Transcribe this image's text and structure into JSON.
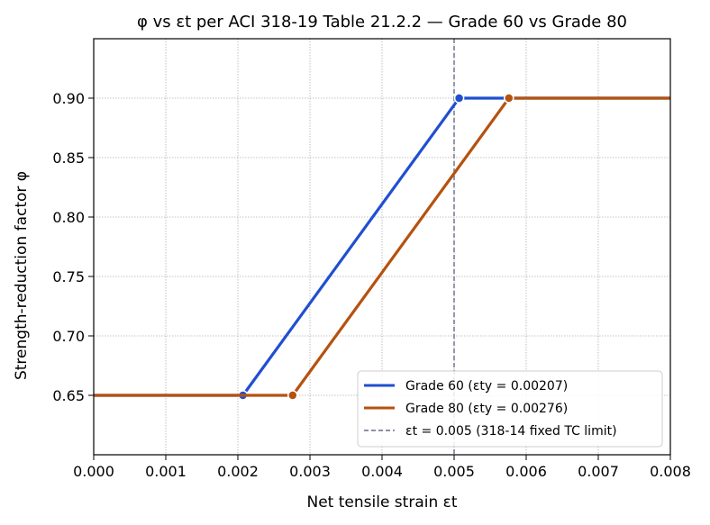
{
  "chart_data": {
    "type": "line",
    "title": "φ vs εt per ACI 318-19 Table 21.2.2 — Grade 60 vs Grade 80",
    "xlabel": "Net tensile strain  εt",
    "ylabel": "Strength-reduction factor  φ",
    "xlim": [
      0.0,
      0.008
    ],
    "ylim": [
      0.6,
      0.95
    ],
    "x_ticks": [
      "0.000",
      "0.001",
      "0.002",
      "0.003",
      "0.004",
      "0.005",
      "0.006",
      "0.007",
      "0.008"
    ],
    "y_ticks": [
      "0.65",
      "0.70",
      "0.75",
      "0.80",
      "0.85",
      "0.90"
    ],
    "grid": true,
    "legend_position": "lower-right",
    "series": [
      {
        "name": "Grade 60  (εty = 0.00207)",
        "color": "#1f4fd1",
        "points": [
          [
            0.0,
            0.65
          ],
          [
            0.00207,
            0.65
          ],
          [
            0.00507,
            0.9
          ],
          [
            0.008,
            0.9
          ]
        ],
        "markers": [
          [
            0.00207,
            0.65
          ],
          [
            0.00507,
            0.9
          ]
        ]
      },
      {
        "name": "Grade 80  (εty = 0.00276)",
        "color": "#b5520f",
        "points": [
          [
            0.0,
            0.65
          ],
          [
            0.00276,
            0.65
          ],
          [
            0.00576,
            0.9
          ],
          [
            0.008,
            0.9
          ]
        ],
        "markers": [
          [
            0.00276,
            0.65
          ],
          [
            0.00576,
            0.9
          ]
        ]
      }
    ],
    "reference_line": {
      "name": "εt = 0.005 (318-14 fixed TC limit)",
      "x": 0.005,
      "color": "#6a6a8c"
    }
  }
}
